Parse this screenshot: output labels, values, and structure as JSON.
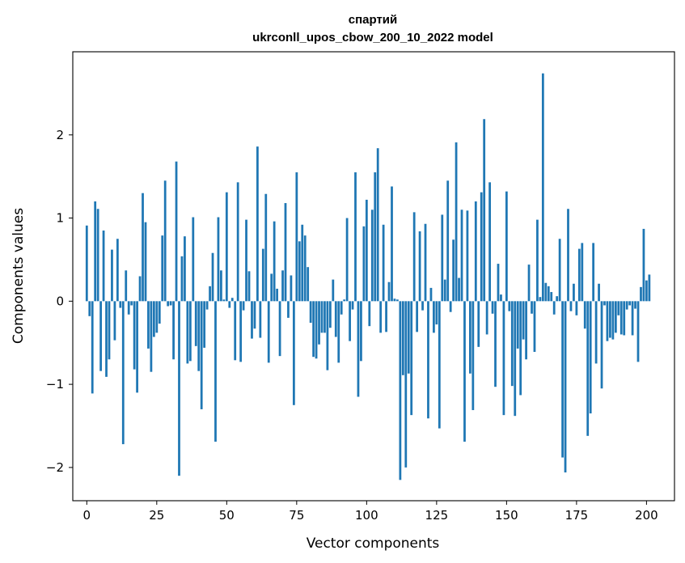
{
  "chart_data": {
    "type": "bar",
    "title": "спартий",
    "subtitle": "ukrconll_upos_cbow_200_10_2022 model",
    "xlabel": "Vector components",
    "ylabel": "Components values",
    "xlim": [
      -5,
      210
    ],
    "ylim": [
      -2.4,
      3.0
    ],
    "x_ticks": [
      0,
      25,
      50,
      75,
      100,
      125,
      150,
      175,
      200
    ],
    "y_ticks": [
      -2,
      -1,
      0,
      1,
      2
    ],
    "y_tick_labels": [
      "−2",
      "−1",
      "0",
      "1",
      "2"
    ],
    "bar_color": "#1f77b4",
    "grid": false,
    "legend": "none",
    "series": [
      {
        "values": [
          0.91,
          -0.18,
          -1.11,
          1.2,
          1.11,
          -0.84,
          0.85,
          -0.91,
          -0.7,
          0.62,
          -0.47,
          0.75,
          -0.08,
          -1.72,
          0.37,
          -0.16,
          -0.05,
          -0.82,
          -1.1,
          0.3,
          1.3,
          0.95,
          -0.57,
          -0.85,
          -0.43,
          -0.38,
          -0.27,
          0.79,
          1.45,
          -0.06,
          -0.05,
          -0.7,
          1.68,
          -2.1,
          0.54,
          0.78,
          -0.75,
          -0.72,
          1.01,
          -0.54,
          -0.84,
          -1.3,
          -0.56,
          -0.1,
          0.18,
          0.58,
          -1.69,
          1.01,
          0.37,
          0.02,
          1.31,
          -0.08,
          0.04,
          -0.71,
          1.43,
          -0.73,
          -0.11,
          0.98,
          0.36,
          -0.45,
          -0.33,
          1.86,
          -0.44,
          0.63,
          1.29,
          -0.74,
          0.33,
          0.96,
          0.15,
          -0.66,
          0.37,
          1.18,
          -0.2,
          0.31,
          -1.25,
          1.55,
          0.72,
          0.92,
          0.79,
          0.41,
          -0.26,
          -0.67,
          -0.69,
          -0.52,
          -0.38,
          -0.38,
          -0.83,
          -0.32,
          0.26,
          -0.43,
          -0.74,
          -0.16,
          0.02,
          1.0,
          -0.48,
          -0.1,
          1.55,
          -1.15,
          -0.72,
          0.9,
          1.22,
          -0.3,
          1.1,
          1.55,
          1.84,
          -0.38,
          0.92,
          -0.37,
          0.23,
          1.38,
          0.03,
          0.02,
          -2.15,
          -0.89,
          -2.0,
          -0.87,
          -1.37,
          1.07,
          -0.37,
          0.84,
          -0.11,
          0.93,
          -1.41,
          0.16,
          -0.38,
          -0.28,
          -1.53,
          1.04,
          0.26,
          1.45,
          -0.13,
          0.74,
          1.91,
          0.28,
          1.1,
          -1.69,
          1.09,
          -0.87,
          -1.31,
          1.2,
          -0.55,
          1.31,
          2.19,
          -0.4,
          1.43,
          -0.15,
          -1.03,
          0.45,
          0.08,
          -1.37,
          1.32,
          -0.12,
          -1.02,
          -1.38,
          -0.57,
          -1.13,
          -0.46,
          -0.7,
          0.44,
          -0.15,
          -0.61,
          0.98,
          0.05,
          2.74,
          0.22,
          0.18,
          0.11,
          -0.16,
          0.06,
          0.75,
          -1.88,
          -2.06,
          1.11,
          -0.12,
          0.21,
          -0.17,
          0.63,
          0.7,
          -0.33,
          -1.62,
          -1.35,
          0.7,
          -0.75,
          0.21,
          -1.05,
          -0.05,
          -0.48,
          -0.44,
          -0.46,
          -0.38,
          -0.17,
          -0.4,
          -0.41,
          -0.1,
          -0.05,
          -0.41,
          -0.09,
          -0.73,
          0.17,
          0.87,
          0.25,
          0.32
        ]
      }
    ]
  }
}
